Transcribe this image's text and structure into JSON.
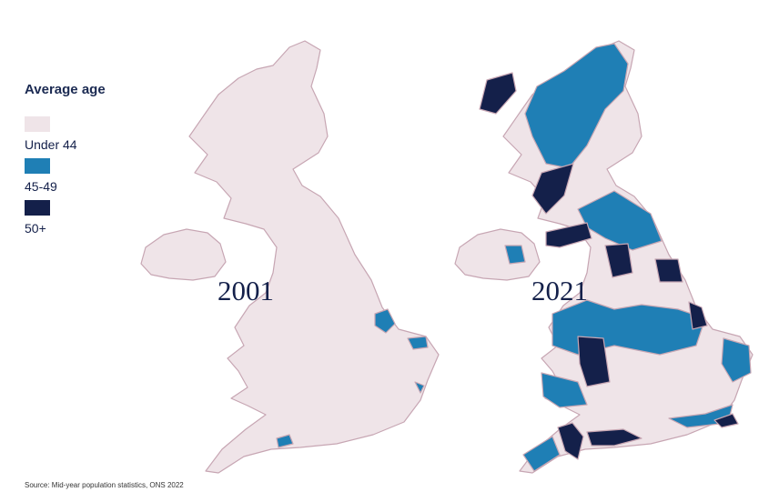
{
  "legend": {
    "title": "Average age",
    "items": [
      {
        "label": "Under 44",
        "color": "#efe4e8"
      },
      {
        "label": "45-49",
        "color": "#1f7fb5"
      },
      {
        "label": "50+",
        "color": "#14204a"
      }
    ]
  },
  "maps": [
    {
      "label": "2001"
    },
    {
      "label": "2021"
    }
  ],
  "source": "Source: Mid-year population statistics, ONS 2022"
}
